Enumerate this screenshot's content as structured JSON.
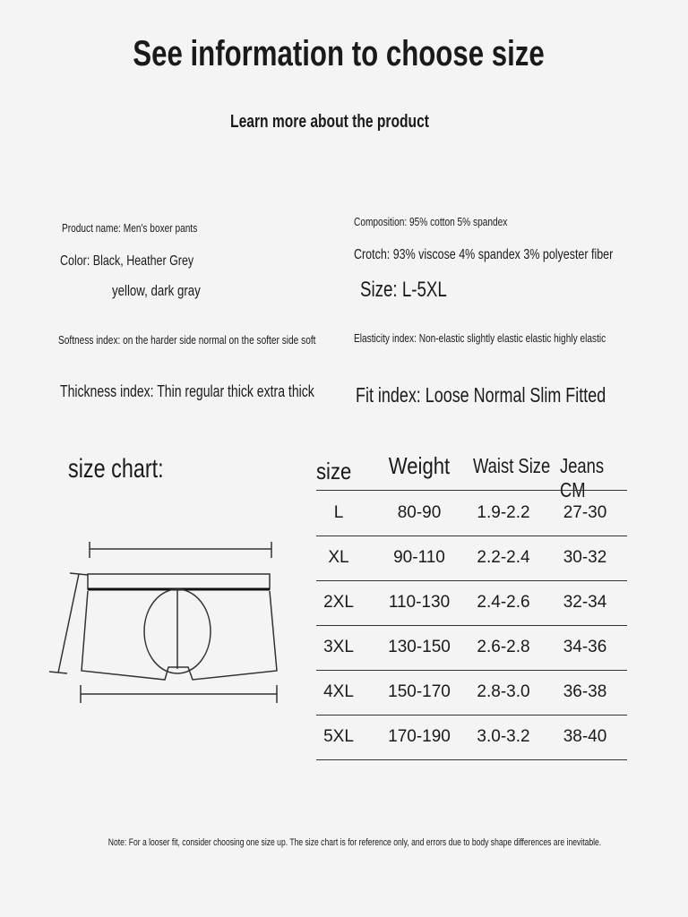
{
  "header": {
    "title": "See information to choose size",
    "subtitle": "Learn more about the product"
  },
  "info": {
    "product_name": "Product name: Men's boxer pants",
    "color_line1": "Color: Black, Heather Grey",
    "color_line2": "yellow, dark gray",
    "softness": "Softness index: on the harder side normal on the softer side soft",
    "thickness": "Thickness index: Thin regular thick extra thick",
    "composition": "Composition: 95% cotton 5% spandex",
    "crotch": "Crotch: 93% viscose 4% spandex 3% polyester fiber",
    "size": "Size: L-5XL",
    "elasticity": "Elasticity index: Non-elastic slightly elastic elastic highly elastic",
    "fit": "Fit index: Loose Normal Slim Fitted"
  },
  "size_chart": {
    "label": "size chart:",
    "headers": [
      "size",
      "Weight",
      "Waist Size",
      "Jeans CM"
    ],
    "rows": [
      [
        "L",
        "80-90",
        "1.9-2.2",
        "27-30"
      ],
      [
        "XL",
        "90-110",
        "2.2-2.4",
        "30-32"
      ],
      [
        "2XL",
        "110-130",
        "2.4-2.6",
        "32-34"
      ],
      [
        "3XL",
        "130-150",
        "2.6-2.8",
        "34-36"
      ],
      [
        "4XL",
        "150-170",
        "2.8-3.0",
        "36-38"
      ],
      [
        "5XL",
        "170-190",
        "3.0-3.2",
        "38-40"
      ]
    ]
  },
  "note": "Note: For a looser fit, consider choosing one size up. The size chart is for reference only, and errors due to body shape differences are inevitable."
}
